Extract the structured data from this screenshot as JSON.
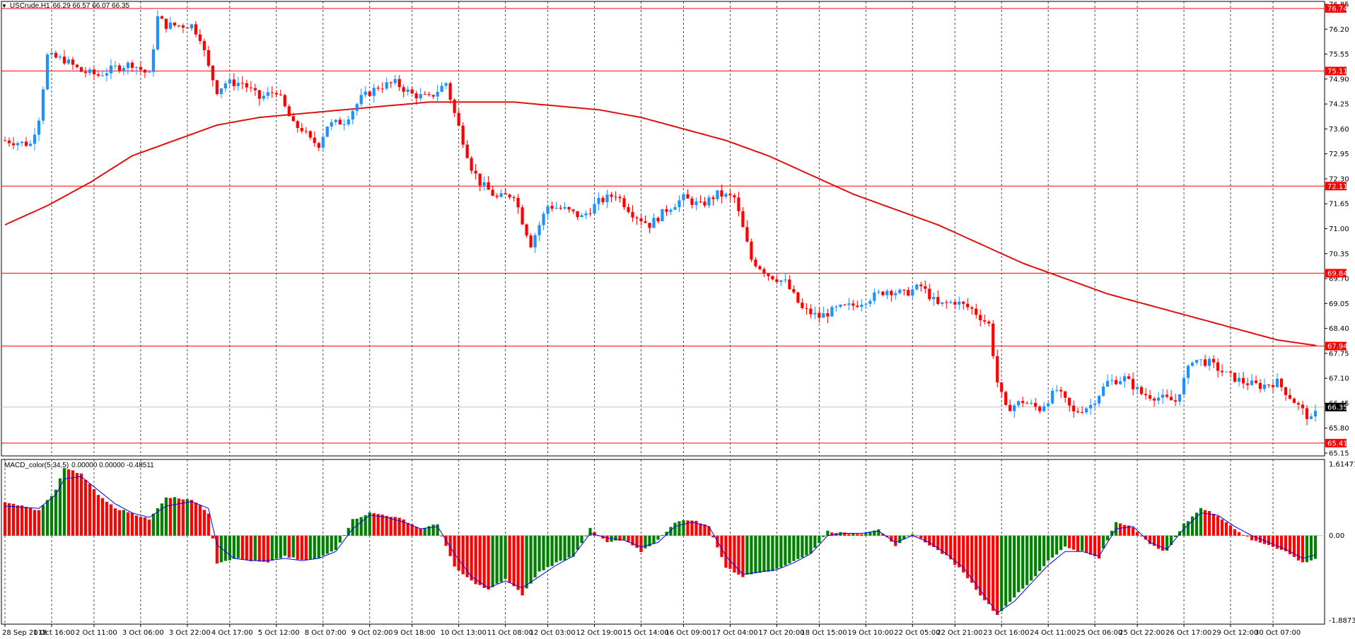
{
  "header": {
    "symbol": "USCrude,H1",
    "ohlc": "66.29 66.57 66.07 66.35"
  },
  "macd_header": {
    "name": "MACD_color(5,34,5)",
    "values": "0.00000 0.00000 -0.48511"
  },
  "colors": {
    "background": "#ffffff",
    "bull_candle": "#1e90ff",
    "bear_candle": "#ff0000",
    "level_line": "#ff0000",
    "moving_average": "#e01010",
    "histogram_positive": "#008000",
    "histogram_negative": "#ff0000",
    "signal_line": "#0000ff",
    "current_price_bg": "#000000"
  },
  "chart_data": [
    {
      "type": "candlestick",
      "symbol": "USCrude",
      "timeframe": "H1",
      "y_ticks": [
        "76.85",
        "76.20",
        "75.55",
        "74.90",
        "74.25",
        "73.60",
        "72.95",
        "72.30",
        "71.65",
        "71.00",
        "70.35",
        "69.70",
        "69.05",
        "68.40",
        "67.75",
        "67.10",
        "66.45",
        "65.80",
        "65.15"
      ],
      "ylim": [
        65.15,
        76.85
      ],
      "x_ticks": [
        "28 Sep 2018",
        "1 Oct 16:00",
        "2 Oct 11:00",
        "3 Oct 06:00",
        "3 Oct 22:00",
        "4 Oct 17:00",
        "5 Oct 12:00",
        "8 Oct 07:00",
        "9 Oct 02:00",
        "9 Oct 18:00",
        "10 Oct 13:00",
        "11 Oct 08:00",
        "12 Oct 03:00",
        "12 Oct 19:00",
        "15 Oct 14:00",
        "16 Oct 09:00",
        "17 Oct 04:00",
        "17 Oct 20:00",
        "18 Oct 15:00",
        "19 Oct 10:00",
        "22 Oct 05:00",
        "22 Oct 21:00",
        "23 Oct 16:00",
        "24 Oct 11:00",
        "25 Oct 06:00",
        "25 Oct 22:00",
        "26 Oct 17:00",
        "29 Oct 12:00",
        "30 Oct 07:00"
      ],
      "horizontal_levels": [
        "76.74",
        "75.11",
        "72.11",
        "69.84",
        "67.94",
        "65.41"
      ],
      "current_price": "66.35",
      "close_path": [
        [
          0,
          73.3
        ],
        [
          6,
          73.2
        ],
        [
          8,
          73.9
        ],
        [
          10,
          75.5
        ],
        [
          14,
          75.4
        ],
        [
          18,
          75.1
        ],
        [
          22,
          75.0
        ],
        [
          26,
          75.2
        ],
        [
          30,
          75.3
        ],
        [
          34,
          75.0
        ],
        [
          36,
          76.5
        ],
        [
          38,
          76.3
        ],
        [
          44,
          76.3
        ],
        [
          46,
          76.0
        ],
        [
          48,
          75.2
        ],
        [
          50,
          74.6
        ],
        [
          52,
          74.8
        ],
        [
          56,
          74.8
        ],
        [
          60,
          74.4
        ],
        [
          64,
          74.6
        ],
        [
          68,
          73.7
        ],
        [
          70,
          73.6
        ],
        [
          72,
          73.3
        ],
        [
          74,
          73.2
        ],
        [
          76,
          73.7
        ],
        [
          80,
          73.8
        ],
        [
          84,
          74.4
        ],
        [
          88,
          74.7
        ],
        [
          92,
          74.8
        ],
        [
          96,
          74.5
        ],
        [
          100,
          74.4
        ],
        [
          104,
          74.8
        ],
        [
          106,
          74.0
        ],
        [
          108,
          73.3
        ],
        [
          110,
          72.6
        ],
        [
          112,
          72.2
        ],
        [
          116,
          71.8
        ],
        [
          120,
          71.9
        ],
        [
          122,
          71.2
        ],
        [
          124,
          70.6
        ],
        [
          128,
          71.6
        ],
        [
          132,
          71.5
        ],
        [
          136,
          71.3
        ],
        [
          140,
          71.7
        ],
        [
          144,
          71.9
        ],
        [
          148,
          71.4
        ],
        [
          152,
          71.1
        ],
        [
          156,
          71.5
        ],
        [
          160,
          71.8
        ],
        [
          164,
          71.6
        ],
        [
          168,
          71.9
        ],
        [
          172,
          71.8
        ],
        [
          176,
          70.2
        ],
        [
          180,
          69.8
        ],
        [
          184,
          69.6
        ],
        [
          188,
          68.9
        ],
        [
          192,
          68.7
        ],
        [
          196,
          68.9
        ],
        [
          200,
          69.0
        ],
        [
          204,
          69.2
        ],
        [
          208,
          69.4
        ],
        [
          212,
          69.3
        ],
        [
          216,
          69.5
        ],
        [
          220,
          69.0
        ],
        [
          224,
          69.1
        ],
        [
          228,
          68.9
        ],
        [
          232,
          68.5
        ],
        [
          234,
          67.0
        ],
        [
          236,
          66.3
        ],
        [
          240,
          66.5
        ],
        [
          244,
          66.3
        ],
        [
          248,
          66.8
        ],
        [
          252,
          66.2
        ],
        [
          256,
          66.4
        ],
        [
          260,
          67.0
        ],
        [
          264,
          67.1
        ],
        [
          268,
          66.7
        ],
        [
          272,
          66.6
        ],
        [
          276,
          66.5
        ],
        [
          280,
          67.6
        ],
        [
          284,
          67.5
        ],
        [
          288,
          67.2
        ],
        [
          292,
          67.0
        ],
        [
          296,
          66.9
        ],
        [
          300,
          67.0
        ],
        [
          304,
          66.5
        ],
        [
          308,
          66.0
        ],
        [
          310,
          66.35
        ]
      ],
      "moving_average_path": [
        [
          0,
          71.1
        ],
        [
          10,
          71.6
        ],
        [
          20,
          72.2
        ],
        [
          30,
          72.9
        ],
        [
          40,
          73.3
        ],
        [
          50,
          73.7
        ],
        [
          60,
          73.9
        ],
        [
          70,
          74.0
        ],
        [
          80,
          74.1
        ],
        [
          90,
          74.2
        ],
        [
          100,
          74.3
        ],
        [
          106,
          74.3
        ],
        [
          110,
          74.3
        ],
        [
          120,
          74.3
        ],
        [
          130,
          74.2
        ],
        [
          140,
          74.1
        ],
        [
          150,
          73.9
        ],
        [
          160,
          73.6
        ],
        [
          170,
          73.3
        ],
        [
          180,
          72.9
        ],
        [
          190,
          72.4
        ],
        [
          200,
          71.9
        ],
        [
          210,
          71.5
        ],
        [
          220,
          71.1
        ],
        [
          230,
          70.6
        ],
        [
          240,
          70.1
        ],
        [
          250,
          69.7
        ],
        [
          260,
          69.3
        ],
        [
          270,
          69.0
        ],
        [
          280,
          68.7
        ],
        [
          290,
          68.4
        ],
        [
          300,
          68.1
        ],
        [
          310,
          67.94
        ]
      ],
      "approx_bar_count": 310
    },
    {
      "type": "histogram",
      "name": "MACD_color(5,34,5)",
      "y_ticks": [
        "1.61471",
        "0.00",
        "-1.8873"
      ],
      "ylim": [
        -1.8873,
        1.61471
      ],
      "values_path": [
        [
          0,
          0.75
        ],
        [
          8,
          0.55
        ],
        [
          12,
          1.0
        ],
        [
          14,
          1.5
        ],
        [
          18,
          1.35
        ],
        [
          22,
          0.9
        ],
        [
          26,
          0.6
        ],
        [
          30,
          0.5
        ],
        [
          34,
          0.35
        ],
        [
          38,
          0.85
        ],
        [
          44,
          0.8
        ],
        [
          48,
          0.5
        ],
        [
          50,
          -0.6
        ],
        [
          54,
          -0.5
        ],
        [
          58,
          -0.55
        ],
        [
          62,
          -0.6
        ],
        [
          66,
          -0.45
        ],
        [
          70,
          -0.55
        ],
        [
          74,
          -0.5
        ],
        [
          78,
          -0.3
        ],
        [
          82,
          0.35
        ],
        [
          86,
          0.5
        ],
        [
          90,
          0.45
        ],
        [
          94,
          0.35
        ],
        [
          98,
          0.15
        ],
        [
          102,
          0.25
        ],
        [
          106,
          -0.7
        ],
        [
          110,
          -1.0
        ],
        [
          114,
          -1.2
        ],
        [
          118,
          -0.95
        ],
        [
          122,
          -1.3
        ],
        [
          126,
          -0.8
        ],
        [
          130,
          -0.6
        ],
        [
          134,
          -0.45
        ],
        [
          138,
          0.15
        ],
        [
          142,
          -0.15
        ],
        [
          146,
          -0.1
        ],
        [
          150,
          -0.35
        ],
        [
          154,
          -0.1
        ],
        [
          158,
          0.3
        ],
        [
          162,
          0.35
        ],
        [
          166,
          0.2
        ],
        [
          170,
          -0.7
        ],
        [
          174,
          -0.9
        ],
        [
          178,
          -0.8
        ],
        [
          182,
          -0.75
        ],
        [
          186,
          -0.55
        ],
        [
          190,
          -0.4
        ],
        [
          194,
          0.1
        ],
        [
          198,
          0.05
        ],
        [
          202,
          0.05
        ],
        [
          206,
          0.15
        ],
        [
          210,
          -0.25
        ],
        [
          214,
          0.05
        ],
        [
          218,
          -0.2
        ],
        [
          222,
          -0.45
        ],
        [
          226,
          -0.8
        ],
        [
          230,
          -1.3
        ],
        [
          234,
          -1.75
        ],
        [
          238,
          -1.35
        ],
        [
          242,
          -1.0
        ],
        [
          246,
          -0.55
        ],
        [
          250,
          -0.25
        ],
        [
          254,
          -0.35
        ],
        [
          258,
          -0.5
        ],
        [
          262,
          0.3
        ],
        [
          266,
          0.2
        ],
        [
          270,
          -0.2
        ],
        [
          274,
          -0.35
        ],
        [
          278,
          0.25
        ],
        [
          282,
          0.6
        ],
        [
          286,
          0.45
        ],
        [
          290,
          0.15
        ],
        [
          294,
          -0.1
        ],
        [
          298,
          -0.2
        ],
        [
          302,
          -0.35
        ],
        [
          306,
          -0.6
        ],
        [
          310,
          -0.48
        ]
      ],
      "signal_path": [
        [
          0,
          0.65
        ],
        [
          8,
          0.6
        ],
        [
          12,
          0.9
        ],
        [
          14,
          1.25
        ],
        [
          18,
          1.3
        ],
        [
          22,
          1.0
        ],
        [
          26,
          0.7
        ],
        [
          30,
          0.5
        ],
        [
          34,
          0.4
        ],
        [
          38,
          0.65
        ],
        [
          44,
          0.75
        ],
        [
          48,
          0.6
        ],
        [
          50,
          -0.2
        ],
        [
          54,
          -0.5
        ],
        [
          58,
          -0.55
        ],
        [
          62,
          -0.55
        ],
        [
          66,
          -0.5
        ],
        [
          70,
          -0.55
        ],
        [
          74,
          -0.5
        ],
        [
          78,
          -0.35
        ],
        [
          82,
          0.15
        ],
        [
          86,
          0.45
        ],
        [
          90,
          0.4
        ],
        [
          94,
          0.3
        ],
        [
          98,
          0.15
        ],
        [
          102,
          0.2
        ],
        [
          106,
          -0.4
        ],
        [
          110,
          -0.9
        ],
        [
          114,
          -1.15
        ],
        [
          118,
          -1.0
        ],
        [
          122,
          -1.15
        ],
        [
          126,
          -0.9
        ],
        [
          130,
          -0.65
        ],
        [
          134,
          -0.45
        ],
        [
          138,
          0.05
        ],
        [
          142,
          -0.05
        ],
        [
          146,
          -0.1
        ],
        [
          150,
          -0.25
        ],
        [
          154,
          -0.15
        ],
        [
          158,
          0.2
        ],
        [
          162,
          0.3
        ],
        [
          166,
          0.2
        ],
        [
          170,
          -0.45
        ],
        [
          174,
          -0.85
        ],
        [
          178,
          -0.8
        ],
        [
          182,
          -0.75
        ],
        [
          186,
          -0.6
        ],
        [
          190,
          -0.4
        ],
        [
          194,
          0.0
        ],
        [
          198,
          0.05
        ],
        [
          202,
          0.05
        ],
        [
          206,
          0.1
        ],
        [
          210,
          -0.15
        ],
        [
          214,
          0.0
        ],
        [
          218,
          -0.15
        ],
        [
          222,
          -0.4
        ],
        [
          226,
          -0.7
        ],
        [
          230,
          -1.2
        ],
        [
          234,
          -1.7
        ],
        [
          238,
          -1.45
        ],
        [
          242,
          -1.05
        ],
        [
          246,
          -0.65
        ],
        [
          250,
          -0.35
        ],
        [
          254,
          -0.35
        ],
        [
          258,
          -0.45
        ],
        [
          262,
          0.15
        ],
        [
          266,
          0.2
        ],
        [
          270,
          -0.15
        ],
        [
          274,
          -0.3
        ],
        [
          278,
          0.15
        ],
        [
          282,
          0.5
        ],
        [
          286,
          0.45
        ],
        [
          290,
          0.2
        ],
        [
          294,
          0.0
        ],
        [
          298,
          -0.15
        ],
        [
          302,
          -0.3
        ],
        [
          306,
          -0.5
        ],
        [
          310,
          -0.4
        ]
      ]
    }
  ]
}
